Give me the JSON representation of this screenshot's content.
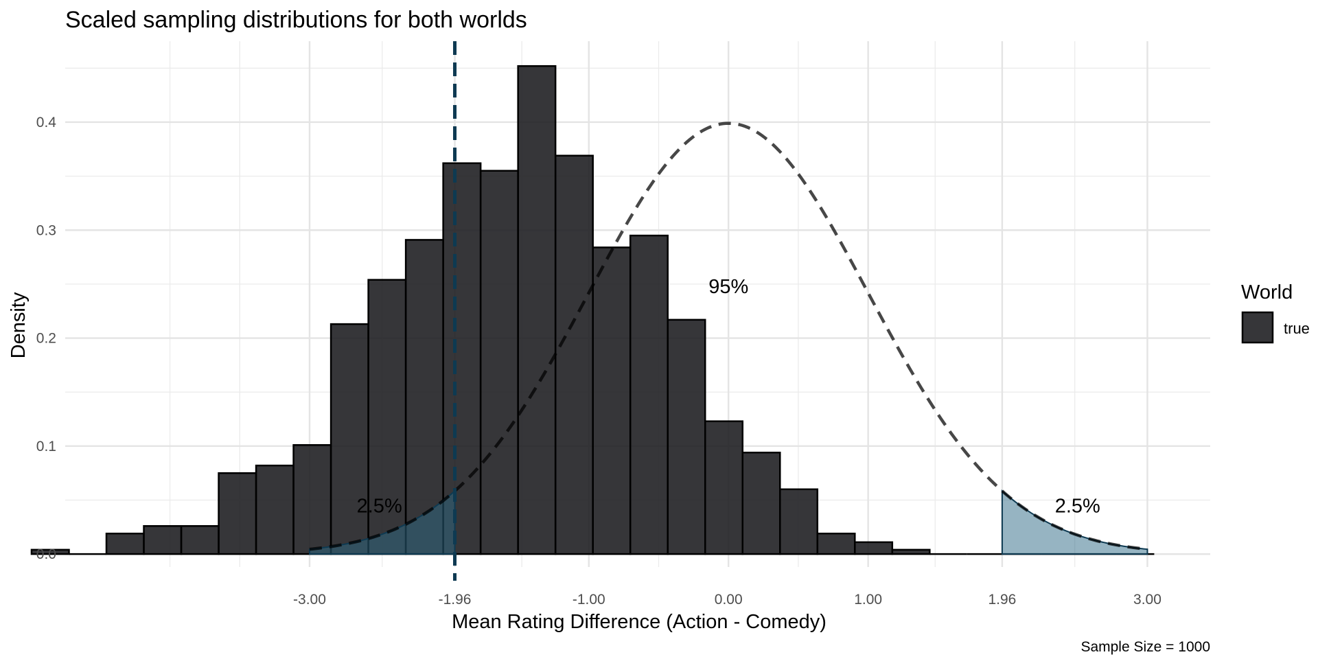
{
  "chart_data": {
    "type": "bar",
    "title": "Scaled sampling distributions for both worlds",
    "xlabel": "Mean Rating Difference (Action - Comedy)",
    "ylabel": "Density",
    "caption": "Sample Size = 1000",
    "xlim": [
      -4.75,
      3.45
    ],
    "ylim": [
      -0.012,
      0.475
    ],
    "x_ticks": [
      {
        "value": -3.0,
        "label": "-3.00"
      },
      {
        "value": -1.96,
        "label": "-1.96"
      },
      {
        "value": -1.0,
        "label": "-1.00"
      },
      {
        "value": 0.0,
        "label": "0.00"
      },
      {
        "value": 1.0,
        "label": "1.00"
      },
      {
        "value": 1.96,
        "label": "1.96"
      },
      {
        "value": 3.0,
        "label": "3.00"
      }
    ],
    "x_minor_gridlines": [
      -4.0,
      -3.5,
      -2.48,
      -1.48,
      -0.5,
      0.5,
      1.48,
      2.48,
      3.0
    ],
    "y_ticks": [
      {
        "value": 0.0,
        "label": "0.0"
      },
      {
        "value": 0.1,
        "label": "0.1"
      },
      {
        "value": 0.2,
        "label": "0.2"
      },
      {
        "value": 0.3,
        "label": "0.3"
      },
      {
        "value": 0.4,
        "label": "0.4"
      }
    ],
    "y_minor_gridlines": [
      0.05,
      0.15,
      0.25,
      0.35,
      0.45
    ],
    "grid": true,
    "histogram": {
      "series_name": "true",
      "bin_width": 0.268,
      "color": "#1a1a1e",
      "opacity": 0.88,
      "bins": [
        {
          "x0": -4.991,
          "density": 0.004
        },
        {
          "x0": -4.723,
          "density": 0.0
        },
        {
          "x0": -4.455,
          "density": 0.019
        },
        {
          "x0": -4.187,
          "density": 0.026
        },
        {
          "x0": -3.919,
          "density": 0.026
        },
        {
          "x0": -3.651,
          "density": 0.075
        },
        {
          "x0": -3.383,
          "density": 0.082
        },
        {
          "x0": -3.115,
          "density": 0.101
        },
        {
          "x0": -2.847,
          "density": 0.213
        },
        {
          "x0": -2.579,
          "density": 0.254
        },
        {
          "x0": -2.311,
          "density": 0.291
        },
        {
          "x0": -2.043,
          "density": 0.362
        },
        {
          "x0": -1.775,
          "density": 0.355
        },
        {
          "x0": -1.507,
          "density": 0.452
        },
        {
          "x0": -1.239,
          "density": 0.369
        },
        {
          "x0": -0.971,
          "density": 0.284
        },
        {
          "x0": -0.703,
          "density": 0.295
        },
        {
          "x0": -0.435,
          "density": 0.217
        },
        {
          "x0": -0.167,
          "density": 0.123
        },
        {
          "x0": 0.101,
          "density": 0.094
        },
        {
          "x0": 0.369,
          "density": 0.06
        },
        {
          "x0": 0.637,
          "density": 0.019
        },
        {
          "x0": 0.905,
          "density": 0.011
        },
        {
          "x0": 1.173,
          "density": 0.004
        },
        {
          "x0": 1.441,
          "density": 0.0
        },
        {
          "x0": 1.709,
          "density": 0.0
        },
        {
          "x0": 1.977,
          "density": 0.0
        },
        {
          "x0": 2.245,
          "density": 0.0
        },
        {
          "x0": 2.513,
          "density": 0.0
        },
        {
          "x0": 2.781,
          "density": 0.0
        }
      ]
    },
    "null_distribution": {
      "type": "normal",
      "mean": 0,
      "sd": 1,
      "x_range": [
        -3.0,
        3.0
      ],
      "line_style": "dashed",
      "color": "#444444"
    },
    "shaded_tails": {
      "color": "#2d6a86",
      "opacity": 0.5,
      "regions": [
        [
          -3.0,
          -1.96
        ],
        [
          1.96,
          3.0
        ]
      ]
    },
    "critical_line": {
      "x": -1.96,
      "style": "dashed",
      "color": "#0e3a52"
    },
    "annotations": [
      {
        "text": "2.5%",
        "x": -2.5,
        "y": 0.045
      },
      {
        "text": "95%",
        "x": 0.0,
        "y": 0.248
      },
      {
        "text": "2.5%",
        "x": 2.5,
        "y": 0.045
      }
    ],
    "legend": {
      "title": "World",
      "placement": "right",
      "entries": [
        {
          "label": "true",
          "color": "#1a1a1e"
        }
      ]
    }
  }
}
